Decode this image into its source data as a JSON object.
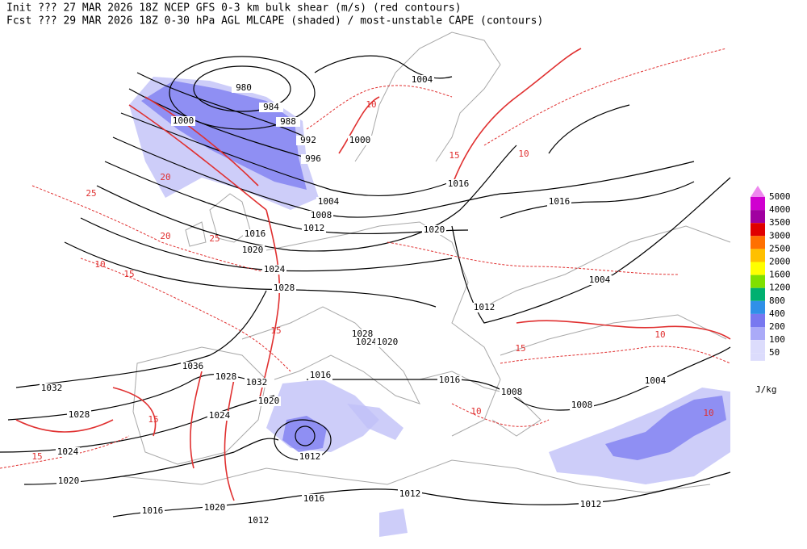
{
  "header": {
    "lines": [
      "Init  ??? 27 MAR 2026 18Z  NCEP GFS 0-3 km bulk shear (m/s) (red contours)",
      "Fcst ??? 29 MAR 2026 18Z  0-30 hPa AGL MLCAPE (shaded) / most-unstable CAPE (contours)"
    ]
  },
  "legend": {
    "levels": [
      {
        "value": 5000,
        "color": "#ee88ee"
      },
      {
        "value": 4000,
        "color": "#d000d0"
      },
      {
        "value": 3500,
        "color": "#a000a0"
      },
      {
        "value": 3000,
        "color": "#e00000"
      },
      {
        "value": 2500,
        "color": "#ff7000"
      },
      {
        "value": 2000,
        "color": "#ffc000"
      },
      {
        "value": 1600,
        "color": "#ffff00"
      },
      {
        "value": 1200,
        "color": "#80e000"
      },
      {
        "value": 800,
        "color": "#00b070"
      },
      {
        "value": 400,
        "color": "#3090e8"
      },
      {
        "value": 200,
        "color": "#7878f0"
      },
      {
        "value": 100,
        "color": "#aaaaf8"
      },
      {
        "value": 50,
        "color": "#dcdcfc"
      }
    ],
    "unit": "J/kg"
  },
  "isobar_labels": [
    980,
    984,
    988,
    992,
    996,
    1000,
    1000,
    1004,
    1004,
    1008,
    1012,
    1016,
    1016,
    1016,
    1020,
    1020,
    1024,
    1028,
    1004,
    1012,
    1028,
    1024,
    1020,
    1036,
    1028,
    1032,
    1016,
    1016,
    1004,
    1008,
    1008,
    1032,
    1028,
    1024,
    1020,
    1012,
    1024,
    1020,
    1020,
    1016,
    1016,
    1012,
    1012,
    1012
  ],
  "shear_labels": [
    10,
    15,
    20,
    25,
    20,
    25,
    10,
    15,
    15,
    10,
    15,
    10,
    15,
    15,
    10,
    10
  ]
}
